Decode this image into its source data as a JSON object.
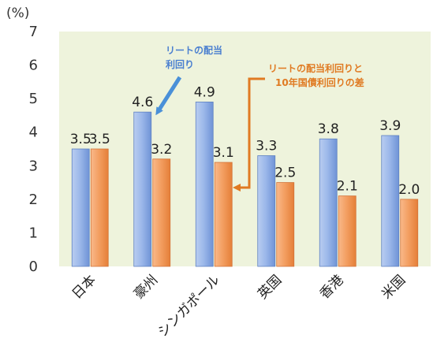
{
  "chart_data": {
    "type": "bar",
    "unit_label": "(%)",
    "categories": [
      "日本",
      "豪州",
      "シンガポール",
      "英国",
      "香港",
      "米国"
    ],
    "series": [
      {
        "values": [
          3.5,
          4.6,
          4.9,
          3.3,
          3.8,
          3.9
        ],
        "color": "#8eaee3"
      },
      {
        "values": [
          3.5,
          3.2,
          3.1,
          2.5,
          2.1,
          2.0
        ],
        "color": "#f2975a"
      }
    ],
    "ylim": [
      0,
      7
    ],
    "yticks": [
      "0",
      "1",
      "2",
      "3",
      "4",
      "5",
      "6",
      "7"
    ],
    "grid": false,
    "plot_background": "#eef3dc",
    "annotations": [
      {
        "lines": [
          "リートの配当",
          "利回り"
        ],
        "color": "#4a7fd0"
      },
      {
        "lines": [
          "リートの配当利回りと",
          "10年国債利回りの差"
        ],
        "color": "#e07a22"
      }
    ]
  }
}
